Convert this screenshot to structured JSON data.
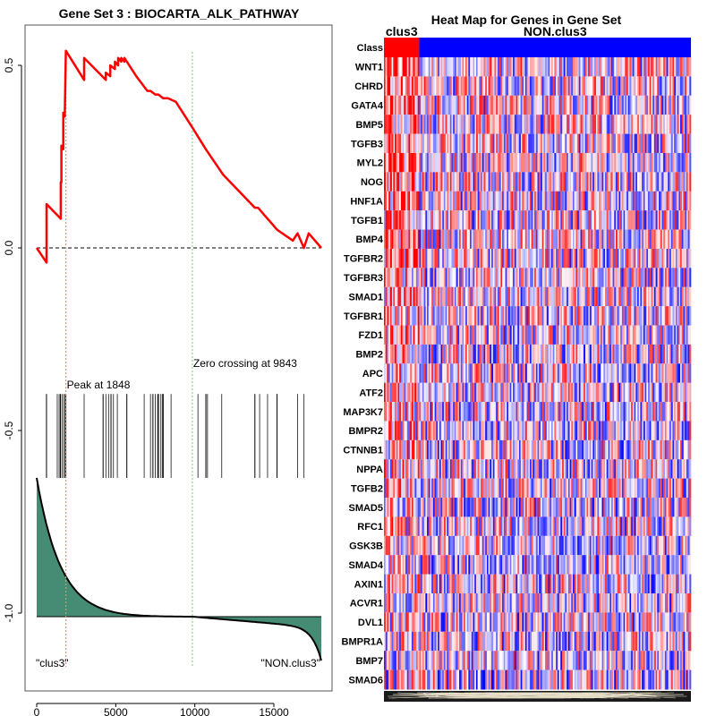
{
  "chart_data": [
    {
      "type": "line",
      "title": "Gene Set  3 : BIOCARTA_ALK_PATHWAY",
      "xlabel": "",
      "ylabel": "",
      "xlim": [
        0,
        18000
      ],
      "ylim": [
        -1.15,
        0.6
      ],
      "x_ticks": [
        0,
        5000,
        10000,
        15000
      ],
      "x_tick_labels": [
        "0",
        "5000",
        "10000",
        "15000"
      ],
      "y_ticks": [
        0.5,
        0.0,
        -0.5,
        -1.0
      ],
      "y_tick_labels": [
        "0.5",
        "0.0",
        "-0.5",
        "-1.0"
      ],
      "grid": false,
      "running_enrichment_score": {
        "name": "running-es",
        "color": "#ff0000",
        "x": [
          0,
          620,
          620,
          1520,
          1520,
          1560,
          1560,
          1680,
          1680,
          1780,
          1780,
          1848,
          3000,
          3000,
          4370,
          4370,
          4650,
          4650,
          4950,
          4950,
          5150,
          5150,
          5350,
          5350,
          5550,
          5550,
          6300,
          6300,
          7000,
          7200,
          7500,
          7700,
          8000,
          8300,
          8800,
          9843,
          10700,
          11800,
          13800,
          14000,
          14400,
          14800,
          15200,
          16200,
          16500,
          16900,
          17200,
          18000
        ],
        "y": [
          0,
          -0.04,
          0.12,
          0.08,
          0.18,
          0.18,
          0.28,
          0.27,
          0.37,
          0.36,
          0.37,
          0.54,
          0.46,
          0.52,
          0.46,
          0.48,
          0.47,
          0.5,
          0.49,
          0.51,
          0.5,
          0.52,
          0.51,
          0.52,
          0.51,
          0.52,
          0.47,
          0.47,
          0.43,
          0.43,
          0.42,
          0.42,
          0.41,
          0.41,
          0.4,
          0.33,
          0.27,
          0.2,
          0.11,
          0.11,
          0.09,
          0.07,
          0.05,
          0.02,
          0.04,
          0.0,
          0.04,
          0.0
        ]
      },
      "zero_line": {
        "y": 0.0,
        "style": "dashed",
        "color": "#000000"
      },
      "peak": {
        "x": 1848,
        "label": "Peak at 1848",
        "color": "#ff8080"
      },
      "zero_crossing": {
        "x": 9843,
        "label": "Zero crossing at 9843",
        "color": "#80e080"
      },
      "hit_positions": [
        620,
        1300,
        1420,
        1500,
        1600,
        1700,
        1800,
        1848,
        3000,
        4200,
        4380,
        4550,
        4700,
        4850,
        5100,
        5700,
        6800,
        7200,
        7350,
        7500,
        7650,
        7700,
        7850,
        7950,
        8000,
        8500,
        10200,
        10700,
        10800,
        11700,
        13800,
        14100,
        14600,
        15200,
        16500,
        16900
      ],
      "hit_y_range": [
        -0.63,
        -0.4
      ],
      "ranked_metric": {
        "fill_color": "#468b73",
        "baseline": -1.0,
        "left_label": "\"clus3\"",
        "right_label": "\"NON.clus3\"",
        "start_value": -0.62,
        "end_value": -1.12
      }
    },
    {
      "type": "heatmap",
      "title": "Heat Map for Genes in Gene Set",
      "class_row_label": "Class",
      "classes": [
        {
          "name": "clus3",
          "color": "#ff0000",
          "fraction": 0.115
        },
        {
          "name": "NON.clus3",
          "color": "#0000ff",
          "fraction": 0.885
        }
      ],
      "genes": [
        "WNT1",
        "CHRD",
        "GATA4",
        "BMP5",
        "TGFB3",
        "MYL2",
        "NOG",
        "HNF1A",
        "TGFB1",
        "BMP4",
        "TGFBR2",
        "TGFBR3",
        "SMAD1",
        "TGFBR1",
        "FZD1",
        "BMP2",
        "APC",
        "ATF2",
        "MAP3K7",
        "BMPR2",
        "CTNNB1",
        "NPPA",
        "TGFB2",
        "SMAD5",
        "RFC1",
        "GSK3B",
        "SMAD4",
        "AXIN1",
        "ACVR1",
        "DVL1",
        "BMPR1A",
        "BMP7",
        "SMAD6"
      ],
      "color_scale": {
        "low": "#0000ff",
        "mid": "#ffffff",
        "high": "#ff0000"
      }
    }
  ]
}
